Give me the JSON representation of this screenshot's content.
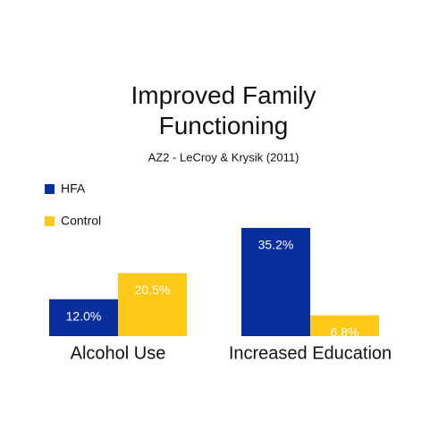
{
  "chart_data": {
    "type": "bar",
    "title": "Improved Family Functioning",
    "subtitle": "AZ2 - LeCroy & Krysik (2011)",
    "categories": [
      "Alcohol Use",
      "Increased Education"
    ],
    "series": [
      {
        "name": "HFA",
        "color": "#0a2f9c",
        "values": [
          12.0,
          35.2
        ],
        "value_labels": [
          "12.0%",
          "35.2%"
        ]
      },
      {
        "name": "Control",
        "color": "#ffc91a",
        "values": [
          20.5,
          6.8
        ],
        "value_labels": [
          "20.5%",
          "6.8%"
        ]
      }
    ]
  }
}
